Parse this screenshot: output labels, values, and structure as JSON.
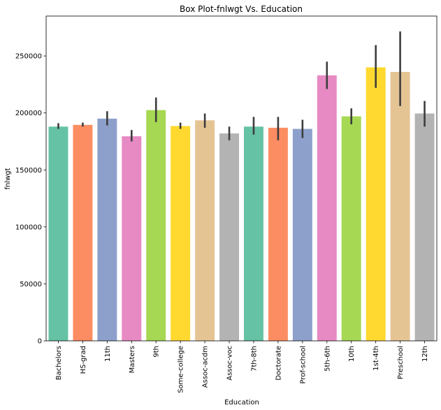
{
  "chart_data": {
    "type": "bar",
    "title": "Box Plot-fnlwgt Vs. Education",
    "xlabel": "Education",
    "ylabel": "fnlwgt",
    "ylim": [
      0,
      285000
    ],
    "yticks": [
      0,
      50000,
      100000,
      150000,
      200000,
      250000
    ],
    "ytick_labels": [
      "0",
      "50000",
      "100000",
      "150000",
      "200000",
      "250000"
    ],
    "categories": [
      "Bachelors",
      "HS-grad",
      "11th",
      "Masters",
      "9th",
      "Some-college",
      "Assoc-acdm",
      "Assoc-voc",
      "7th-8th",
      "Doctorate",
      "Prof-school",
      "5th-6th",
      "10th",
      "1st-4th",
      "Preschool",
      "12th"
    ],
    "values": [
      188000,
      189500,
      195000,
      179500,
      202500,
      188500,
      193500,
      182000,
      188000,
      187000,
      186000,
      233000,
      197000,
      240000,
      236000,
      199500
    ],
    "error_low": [
      186000,
      188000,
      189000,
      175000,
      192000,
      186000,
      187000,
      176000,
      181000,
      176000,
      178000,
      221000,
      190000,
      222000,
      206000,
      188000
    ],
    "error_high": [
      191000,
      191500,
      201500,
      185000,
      213500,
      191500,
      199500,
      188000,
      196500,
      196500,
      194000,
      245000,
      204000,
      259500,
      271500,
      210500
    ],
    "colors": [
      "#66c2a5",
      "#fc8d62",
      "#8da0cb",
      "#e78ac3",
      "#a6d854",
      "#ffd92f",
      "#e5c494",
      "#b3b3b3",
      "#66c2a5",
      "#fc8d62",
      "#8da0cb",
      "#e78ac3",
      "#a6d854",
      "#ffd92f",
      "#e5c494",
      "#b3b3b3"
    ],
    "error_color": "#3d3d3d",
    "grid": false
  }
}
